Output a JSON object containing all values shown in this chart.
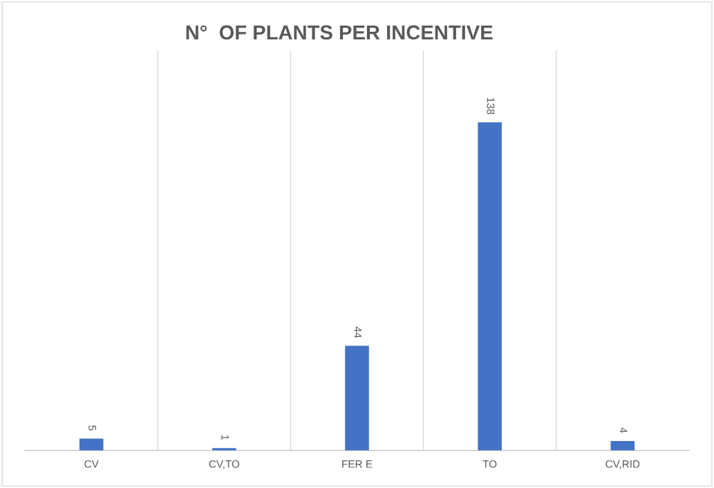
{
  "chart_data": {
    "type": "bar",
    "title": "N°  OF PLANTS PER INCENTIVE",
    "categories": [
      "CV",
      "CV,TO",
      "FER E",
      "TO",
      "CV,RID"
    ],
    "values": [
      5,
      1,
      44,
      138,
      4
    ],
    "color": "#4472c4",
    "data_labels": true,
    "grid": "x"
  }
}
